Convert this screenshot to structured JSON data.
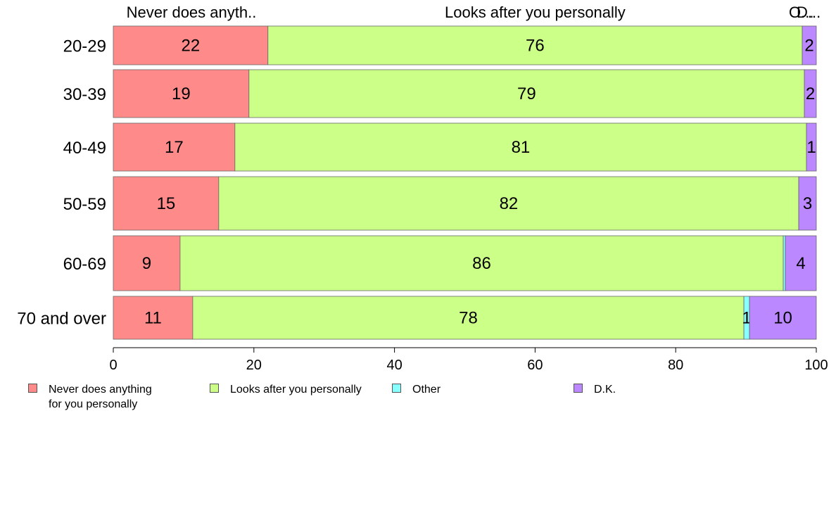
{
  "chart_data": {
    "type": "bar",
    "orientation": "horizontal",
    "stacked": true,
    "categories": [
      "20-29",
      "30-39",
      "40-49",
      "50-59",
      "60-69",
      "70 and over"
    ],
    "series": [
      {
        "name": "Never does anything\nfor you personally",
        "values": [
          22,
          19.3,
          17.3,
          15,
          9.5,
          11.3
        ],
        "labels": [
          "22",
          "19",
          "17",
          "15",
          "9",
          "11"
        ],
        "color": "#FF8A8A"
      },
      {
        "name": "Looks after you personally",
        "values": [
          76,
          79,
          81.3,
          82.5,
          85.8,
          78.4
        ],
        "labels": [
          "76",
          "79",
          "81",
          "82",
          "86",
          "78"
        ],
        "color": "#CCFF88"
      },
      {
        "name": "Other",
        "values": [
          0,
          0,
          0,
          0,
          0.3,
          0.8
        ],
        "labels": [
          "",
          "",
          "",
          "",
          "",
          "1"
        ],
        "color": "#88FFFF"
      },
      {
        "name": "D.K.",
        "values": [
          2,
          1.7,
          1.4,
          2.5,
          4.4,
          9.5
        ],
        "labels": [
          "2",
          "2",
          "1",
          "3",
          "4",
          "10"
        ],
        "color": "#BB88FF"
      }
    ],
    "top_labels": [
      "Never does anyth..",
      "Looks after you personally",
      "O...",
      "D..."
    ],
    "xlim": [
      0,
      100
    ],
    "xticks": [
      "0",
      "20",
      "40",
      "60",
      "80",
      "100"
    ],
    "grid": false,
    "legend_position": "bottom"
  }
}
